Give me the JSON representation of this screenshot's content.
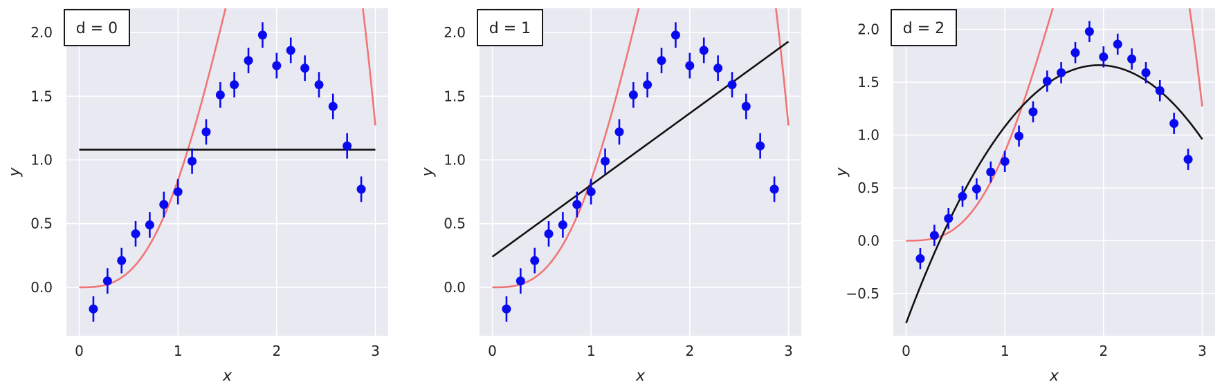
{
  "colors": {
    "panel_bg": "#e9e9f1",
    "grid": "#ffffff",
    "true_curve": "#f07575",
    "data_points": "#0a0aee",
    "fit_line": "#111111",
    "text": "#222222"
  },
  "chart_data": [
    {
      "type": "scatter",
      "label": "d = 0",
      "xlabel": "x",
      "ylabel": "y",
      "xlim": [
        -0.13,
        3.13
      ],
      "ylim": [
        -0.38,
        2.19
      ],
      "xticks": [
        0,
        1,
        2,
        3
      ],
      "yticks": [
        0.0,
        0.5,
        1.0,
        1.5,
        2.0
      ],
      "ytick_labels": [
        "0.0",
        "0.5",
        "1.0",
        "1.5",
        "2.0"
      ],
      "grid": true,
      "legend": "none",
      "points_x": [
        0.143,
        0.286,
        0.429,
        0.571,
        0.714,
        0.857,
        1.0,
        1.143,
        1.286,
        1.429,
        1.571,
        1.714,
        1.857,
        2.0,
        2.143,
        2.286,
        2.429,
        2.571,
        2.714,
        2.857
      ],
      "points_y": [
        -0.17,
        0.05,
        0.21,
        0.42,
        0.49,
        0.65,
        0.75,
        0.99,
        1.22,
        1.51,
        1.59,
        1.78,
        1.98,
        1.74,
        1.86,
        1.72,
        1.59,
        1.42,
        1.11,
        0.77
      ],
      "yerr": 0.1,
      "fit_coeffs": [
        1.08
      ]
    },
    {
      "type": "scatter",
      "label": "d = 1",
      "xlabel": "x",
      "ylabel": "y",
      "xlim": [
        -0.13,
        3.13
      ],
      "ylim": [
        -0.38,
        2.19
      ],
      "xticks": [
        0,
        1,
        2,
        3
      ],
      "yticks": [
        0.0,
        0.5,
        1.0,
        1.5,
        2.0
      ],
      "ytick_labels": [
        "0.0",
        "0.5",
        "1.0",
        "1.5",
        "2.0"
      ],
      "grid": true,
      "legend": "none",
      "points_x": [
        0.143,
        0.286,
        0.429,
        0.571,
        0.714,
        0.857,
        1.0,
        1.143,
        1.286,
        1.429,
        1.571,
        1.714,
        1.857,
        2.0,
        2.143,
        2.286,
        2.429,
        2.571,
        2.714,
        2.857
      ],
      "points_y": [
        -0.17,
        0.05,
        0.21,
        0.42,
        0.49,
        0.65,
        0.75,
        0.99,
        1.22,
        1.51,
        1.59,
        1.78,
        1.98,
        1.74,
        1.86,
        1.72,
        1.59,
        1.42,
        1.11,
        0.77
      ],
      "yerr": 0.1,
      "fit_coeffs": [
        0.24,
        0.563
      ]
    },
    {
      "type": "scatter",
      "label": "d = 2",
      "xlabel": "x",
      "ylabel": "y",
      "xlim": [
        -0.13,
        3.13
      ],
      "ylim": [
        -0.9,
        2.2
      ],
      "xticks": [
        0,
        1,
        2,
        3
      ],
      "yticks": [
        -0.5,
        0.0,
        0.5,
        1.0,
        1.5,
        2.0
      ],
      "ytick_labels": [
        "−0.5",
        "0.0",
        "0.5",
        "1.0",
        "1.5",
        "2.0"
      ],
      "grid": true,
      "legend": "none",
      "points_x": [
        0.143,
        0.286,
        0.429,
        0.571,
        0.714,
        0.857,
        1.0,
        1.143,
        1.286,
        1.429,
        1.571,
        1.714,
        1.857,
        2.0,
        2.143,
        2.286,
        2.429,
        2.571,
        2.714,
        2.857
      ],
      "points_y": [
        -0.17,
        0.05,
        0.21,
        0.42,
        0.49,
        0.65,
        0.75,
        0.99,
        1.22,
        1.51,
        1.59,
        1.78,
        1.98,
        1.74,
        1.86,
        1.72,
        1.59,
        1.42,
        1.11,
        0.77
      ],
      "yerr": 0.1,
      "fit_coeffs": [
        -0.78,
        2.5,
        -0.64
      ]
    }
  ]
}
